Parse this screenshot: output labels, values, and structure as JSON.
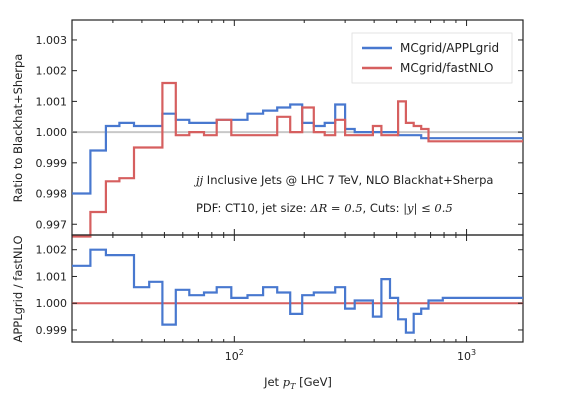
{
  "chart_data": [
    {
      "type": "line",
      "panel": "top",
      "ylabel": "Ratio to Blackhat+Sherpa",
      "xscale": "log",
      "xlim": [
        20,
        1750
      ],
      "ylim": [
        0.99665,
        1.00365
      ],
      "yticks": [
        0.997,
        0.998,
        0.999,
        1.0,
        1.001,
        1.002,
        1.003
      ],
      "ytick_labels": [
        "0.997",
        "0.998",
        "0.999",
        "1.000",
        "1.001",
        "1.002",
        "1.003"
      ],
      "reference_line": 1.0,
      "legend_position": "top-right",
      "bin_edges": [
        20,
        24,
        28,
        32,
        37,
        43,
        49,
        56,
        64,
        74,
        84,
        97,
        114,
        133,
        153,
        174,
        196,
        220,
        245,
        272,
        300,
        330,
        362,
        395,
        430,
        468,
        507,
        548,
        592,
        638,
        686,
        737,
        790,
        846,
        905,
        967,
        1032,
        1101,
        1172,
        1248,
        1327,
        1410,
        1497,
        1588,
        1684,
        1784
      ],
      "series": [
        {
          "name": "MCgrid/APPLgrid",
          "color": "#4878cf",
          "values": [
            0.998,
            0.9994,
            1.0002,
            1.0003,
            1.0002,
            1.0002,
            1.0006,
            1.0004,
            1.0003,
            1.0003,
            1.0004,
            1.0004,
            1.0006,
            1.0007,
            1.0008,
            1.0009,
            1.0003,
            1.0002,
            1.0003,
            1.0009,
            1.0001,
            1.0,
            1.0,
            1.0,
            1.0,
            1.0,
            0.9999,
            0.9999,
            0.9999,
            0.9998,
            0.9998,
            0.9998,
            0.9998,
            0.9998,
            0.9998,
            0.9998,
            0.9998,
            0.9998,
            0.9998,
            0.9998,
            0.9998,
            0.9998,
            0.9998,
            0.9998,
            0.9998
          ]
        },
        {
          "name": "MCgrid/fastNLO",
          "color": "#d65f5f",
          "values": [
            0.9966,
            0.9974,
            0.9984,
            0.9985,
            0.9995,
            0.9995,
            1.0016,
            0.9999,
            1.0,
            0.9999,
            1.0004,
            0.9999,
            0.9999,
            0.9999,
            1.0005,
            1.0,
            1.0008,
            1.0,
            0.9999,
            1.0004,
            0.9999,
            0.9999,
            0.9999,
            1.0002,
            0.9999,
            0.9999,
            1.001,
            1.0003,
            1.0002,
            1.0001,
            0.9997,
            0.9997,
            0.9997,
            0.9997,
            0.9997,
            0.9997,
            0.9997,
            0.9997,
            0.9997,
            0.9997,
            0.9997,
            0.9997,
            0.9997,
            0.9997,
            0.9997
          ]
        }
      ],
      "annotations": [
        {
          "math": "jj",
          "text": " Inclusive Jets @ LHC 7 TeV, NLO Blackhat+Sherpa"
        },
        {
          "text": "PDF: CT10, jet size: ",
          "math": "ΔR = 0.5",
          "text2": ", Cuts: ",
          "math2": "|y| ≤ 0.5"
        }
      ]
    },
    {
      "type": "line",
      "panel": "bottom",
      "ylabel": "APPLgrid / fastNLO",
      "xlabel": "Jet p_T [GeV]",
      "xlabel_parts": [
        "Jet ",
        "p",
        "T",
        " [GeV]"
      ],
      "xscale": "log",
      "xlim": [
        20,
        1750
      ],
      "xticks": [
        100,
        1000
      ],
      "xtick_labels": [
        {
          "base": "10",
          "exp": "2"
        },
        {
          "base": "10",
          "exp": "3"
        }
      ],
      "ylim": [
        0.99855,
        1.00255
      ],
      "yticks": [
        0.999,
        1.0,
        1.001,
        1.002
      ],
      "ytick_labels": [
        "0.999",
        "1.000",
        "1.001",
        "1.002"
      ],
      "reference_line": 1.0,
      "reference_color": "#d65f5f",
      "bin_edges": [
        20,
        24,
        28,
        32,
        37,
        43,
        49,
        56,
        64,
        74,
        84,
        97,
        114,
        133,
        153,
        174,
        196,
        220,
        245,
        272,
        300,
        330,
        362,
        395,
        430,
        468,
        507,
        548,
        592,
        638,
        686,
        737,
        790,
        846,
        905,
        967,
        1032,
        1101,
        1172,
        1248,
        1327,
        1410,
        1497,
        1588,
        1684,
        1784
      ],
      "series": [
        {
          "color": "#4878cf",
          "values": [
            1.0014,
            1.002,
            1.0018,
            1.0018,
            1.0006,
            1.0008,
            0.9992,
            1.0005,
            1.0003,
            1.0004,
            1.0006,
            1.0002,
            1.0003,
            1.0006,
            1.0004,
            0.9996,
            1.0003,
            1.0004,
            1.0004,
            1.0006,
            0.9998,
            1.0001,
            1.0001,
            0.9995,
            1.0009,
            1.0002,
            0.9994,
            0.9989,
            0.9996,
            0.9998,
            1.0001,
            1.0001,
            1.0002,
            1.0002,
            1.0002,
            1.0002,
            1.0002,
            1.0002,
            1.0002,
            1.0002,
            1.0002,
            1.0002,
            1.0002,
            1.0002,
            1.0002
          ]
        }
      ]
    }
  ]
}
